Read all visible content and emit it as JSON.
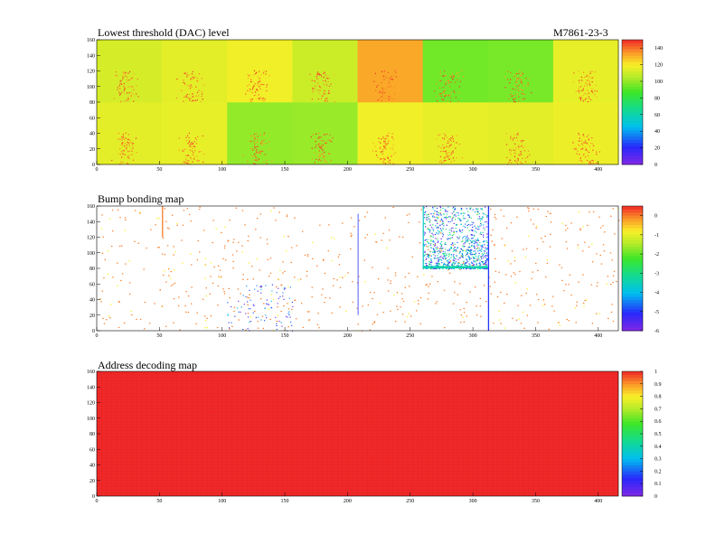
{
  "module_label": "M7861-23-3",
  "chart_data": [
    {
      "type": "heatmap",
      "title": "Lowest threshold (DAC) level",
      "xlim": [
        0,
        416
      ],
      "ylim": [
        0,
        160
      ],
      "x_ticks": [
        "0",
        "50",
        "100",
        "150",
        "200",
        "250",
        "300",
        "350",
        "400"
      ],
      "y_ticks": [
        "0",
        "20",
        "40",
        "60",
        "80",
        "100",
        "120",
        "140",
        "160"
      ],
      "z_ticks": [
        "0",
        "20",
        "40",
        "60",
        "80",
        "100",
        "120",
        "140"
      ],
      "zlim": [
        0,
        150
      ],
      "grid": "2x8 readout chips, 52x80 pixels each",
      "chip_levels_top_row": [
        112,
        115,
        118,
        110,
        132,
        95,
        96,
        116
      ],
      "chip_levels_bottom_row": [
        115,
        116,
        100,
        101,
        118,
        116,
        115,
        117
      ],
      "hotspot_columns": [
        22,
        75,
        128,
        178,
        230,
        280,
        335,
        390
      ]
    },
    {
      "type": "heatmap",
      "title": "Bump bonding map",
      "xlim": [
        0,
        416
      ],
      "ylim": [
        0,
        160
      ],
      "x_ticks": [
        "0",
        "50",
        "100",
        "150",
        "200",
        "250",
        "300",
        "350",
        "400"
      ],
      "y_ticks": [
        "0",
        "20",
        "40",
        "60",
        "80",
        "100",
        "120",
        "140",
        "160"
      ],
      "z_ticks": [
        "0",
        "-1",
        "-2",
        "-3",
        "-4",
        "-5",
        "-6"
      ],
      "zlim": [
        -6,
        0.5
      ],
      "dense_region": {
        "x": [
          260,
          312
        ],
        "y": [
          80,
          160
        ]
      },
      "sparse_regions": [
        {
          "x": [
            104,
            156
          ],
          "y": [
            0,
            60
          ]
        }
      ],
      "line_features": [
        {
          "x": 52,
          "y": [
            120,
            160
          ]
        },
        {
          "x": 208,
          "y": [
            20,
            150
          ]
        },
        {
          "x": 312,
          "y": [
            0,
            160
          ]
        }
      ]
    },
    {
      "type": "heatmap",
      "title": "Address decoding map",
      "xlim": [
        0,
        416
      ],
      "ylim": [
        0,
        160
      ],
      "x_ticks": [
        "0",
        "50",
        "100",
        "150",
        "200",
        "250",
        "300",
        "350",
        "400"
      ],
      "y_ticks": [
        "0",
        "20",
        "40",
        "60",
        "80",
        "100",
        "120",
        "140",
        "160"
      ],
      "z_ticks": [
        "0",
        "0.1",
        "0.2",
        "0.3",
        "0.4",
        "0.5",
        "0.6",
        "0.7",
        "0.8",
        "0.9",
        "1"
      ],
      "zlim": [
        0,
        1
      ],
      "uniform_value": 1
    }
  ]
}
